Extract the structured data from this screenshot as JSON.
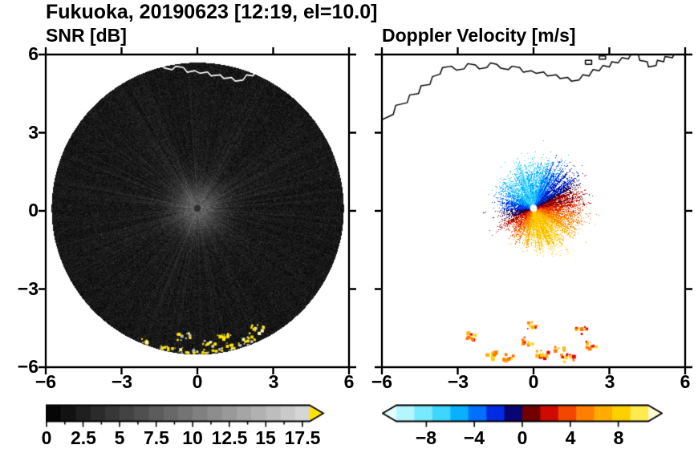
{
  "header": {
    "title": "Fukuoka, 20190623 [12:19, el=10.0]"
  },
  "panels": {
    "snr": {
      "title": "SNR [dB]",
      "xticks": [
        "−6",
        "−3",
        "0",
        "3",
        "6"
      ],
      "yticks": [
        "6",
        "3",
        "0",
        "−3",
        "−6"
      ]
    },
    "doppler": {
      "title": "Doppler Velocity [m/s]",
      "xticks": [
        "−6",
        "−3",
        "0",
        "3",
        "6"
      ]
    }
  },
  "colorbars": {
    "snr": {
      "units": "dB",
      "min": 0,
      "max": 18,
      "segments": 18,
      "tick_values": [
        0,
        2.5,
        5,
        7.5,
        10,
        12.5,
        15,
        17.5
      ],
      "tick_labels": [
        "0",
        "2.5",
        "5",
        "7.5",
        "10",
        "12.5",
        "15",
        "17.5"
      ],
      "start_color": "#000000",
      "end_color": "#dcdcdc",
      "over_color": "#ffe600"
    },
    "doppler": {
      "units": "m/s",
      "min": -10.5,
      "max": 10.5,
      "segments": 14,
      "tick_values": [
        -8,
        -4,
        0,
        4,
        8
      ],
      "tick_labels": [
        "−8",
        "−4",
        "0",
        "4",
        "8"
      ],
      "stops": [
        [
          -11,
          "#e6ffff"
        ],
        [
          -9,
          "#96f0ff"
        ],
        [
          -7,
          "#46dcff"
        ],
        [
          -5,
          "#00aaff"
        ],
        [
          -3.5,
          "#0064ff"
        ],
        [
          -2,
          "#0020dc"
        ],
        [
          -1,
          "#000a8c"
        ],
        [
          -0.3,
          "#140046"
        ],
        [
          0.3,
          "#460000"
        ],
        [
          1,
          "#8c0000"
        ],
        [
          2,
          "#c80000"
        ],
        [
          3.5,
          "#f03c00"
        ],
        [
          5,
          "#ff7800"
        ],
        [
          7,
          "#ffb400"
        ],
        [
          9,
          "#ffe100"
        ],
        [
          11,
          "#fffad2"
        ]
      ]
    }
  },
  "chart_data": [
    {
      "type": "heatmap",
      "panel": "left",
      "title": "SNR [dB]",
      "units": "dB",
      "xlim": [
        -6,
        6
      ],
      "ylim": [
        -6,
        6
      ],
      "xticks": [
        -6,
        -3,
        0,
        3,
        6
      ],
      "yticks": [
        -6,
        -3,
        0,
        3,
        6
      ],
      "grid": false,
      "scan": {
        "shape": "disk",
        "center": [
          0,
          0.1
        ],
        "radius": 5.78,
        "noise_floor_db": [
          0,
          3
        ],
        "center_glow_db": 8,
        "center_dot": {
          "radius_px": 4.2,
          "color": "#2e2e2e"
        }
      },
      "clutter_spots": [
        [
          -2.2,
          -4.95
        ],
        [
          -1.6,
          -5.2
        ],
        [
          -0.95,
          -5.35
        ],
        [
          -0.45,
          -5.4
        ],
        [
          0.2,
          -5.42
        ],
        [
          0.8,
          -5.35
        ],
        [
          1.4,
          -5.2
        ],
        [
          2.0,
          -4.95
        ],
        [
          -0.6,
          -4.8
        ],
        [
          1.05,
          -4.7
        ],
        [
          2.3,
          -4.5
        ],
        [
          0.45,
          -5.0
        ]
      ],
      "clutter_color": "#ffe600",
      "coastline_color": "#ffffff"
    },
    {
      "type": "heatmap",
      "panel": "right",
      "title": "Doppler Velocity [m/s]",
      "units": "m/s",
      "xlim": [
        -6,
        6
      ],
      "ylim": [
        -6,
        6
      ],
      "xticks": [
        -6,
        -3,
        0,
        3,
        6
      ],
      "yticks": [
        -6,
        -3,
        0,
        3,
        6
      ],
      "grid": false,
      "echo_region": {
        "center": [
          0,
          0.1
        ],
        "mean_radius": 1.7,
        "radius_sin_coeff": 0.15,
        "radius_cos_coeff": 0.3,
        "velocity_model": "v = −6.8·sin(az) + 2.6·cos(az) + 0.8 + noise",
        "approaching_sector": "north/up (cyan ≈ −6 m/s)",
        "receding_sector": "south-east/down (yellow-orange ≈ +7 m/s)",
        "center_dot_color": "#ffffff"
      },
      "bottom_spots": [
        [
          -2.45,
          -4.75
        ],
        [
          -1.75,
          -5.5
        ],
        [
          -1.05,
          -5.6
        ],
        [
          -0.25,
          -4.95
        ],
        [
          0.3,
          -5.45
        ],
        [
          0.95,
          -5.25
        ],
        [
          1.85,
          -4.55
        ],
        [
          -0.05,
          -4.35
        ],
        [
          2.25,
          -5.1
        ],
        [
          1.3,
          -5.6
        ]
      ],
      "bottom_spot_colors": [
        "#ff7800",
        "#e60000",
        "#ffb400",
        "#ffd200"
      ],
      "coastline_color": "#000000"
    }
  ],
  "coastline_segments": [
    [
      [
        -6,
        3.5
      ],
      [
        -5.55,
        3.7
      ],
      [
        -5.45,
        4.05
      ],
      [
        -5,
        4.15
      ],
      [
        -4.9,
        4.45
      ],
      [
        -4.55,
        4.5
      ],
      [
        -4.45,
        4.8
      ],
      [
        -4.1,
        4.85
      ],
      [
        -4,
        5.15
      ],
      [
        -3.7,
        5.25
      ],
      [
        -3.6,
        5.5
      ],
      [
        -3.25,
        5.55
      ],
      [
        -3.05,
        5.4
      ],
      [
        -2.75,
        5.45
      ],
      [
        -2.6,
        5.65
      ],
      [
        -2.3,
        5.6
      ],
      [
        -2.15,
        5.45
      ],
      [
        -1.85,
        5.5
      ],
      [
        -1.7,
        5.68
      ],
      [
        -1.45,
        5.62
      ],
      [
        -1.3,
        5.48
      ],
      [
        -1,
        5.42
      ],
      [
        -0.85,
        5.55
      ],
      [
        -0.55,
        5.5
      ],
      [
        -0.4,
        5.32
      ],
      [
        -0.1,
        5.38
      ],
      [
        0.1,
        5.28
      ],
      [
        0.4,
        5.33
      ],
      [
        0.55,
        5.18
      ],
      [
        0.9,
        5.22
      ],
      [
        1.05,
        5.08
      ],
      [
        1.35,
        5.12
      ],
      [
        1.5,
        4.98
      ],
      [
        1.8,
        5.02
      ],
      [
        1.95,
        5.22
      ],
      [
        2.2,
        5.18
      ],
      [
        2.35,
        5.42
      ],
      [
        2.6,
        5.38
      ],
      [
        2.75,
        5.58
      ],
      [
        3,
        5.52
      ],
      [
        3.1,
        5.72
      ],
      [
        3.35,
        5.68
      ],
      [
        3.5,
        5.88
      ],
      [
        3.75,
        5.83
      ],
      [
        3.85,
        6
      ]
    ],
    [
      [
        4.15,
        6
      ],
      [
        4.2,
        5.78
      ],
      [
        4.5,
        5.72
      ],
      [
        4.55,
        5.52
      ],
      [
        4.85,
        5.58
      ],
      [
        4.9,
        5.78
      ],
      [
        5.15,
        5.72
      ],
      [
        5.2,
        5.92
      ],
      [
        5.5,
        5.88
      ],
      [
        5.55,
        6
      ]
    ],
    [
      [
        2.05,
        5.62
      ],
      [
        2.05,
        5.78
      ],
      [
        2.3,
        5.78
      ],
      [
        2.3,
        5.62
      ],
      [
        2.05,
        5.62
      ]
    ],
    [
      [
        2.6,
        5.82
      ],
      [
        2.6,
        5.95
      ],
      [
        2.85,
        5.95
      ],
      [
        2.85,
        5.82
      ],
      [
        2.6,
        5.82
      ]
    ]
  ]
}
